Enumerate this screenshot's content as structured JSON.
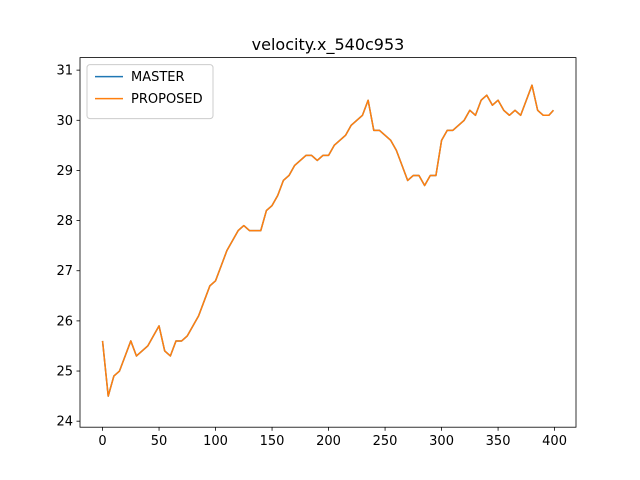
{
  "chart_data": {
    "type": "line",
    "title": "velocity.x_540c953",
    "x": [
      0,
      5,
      10,
      15,
      20,
      25,
      30,
      35,
      40,
      45,
      50,
      55,
      60,
      65,
      70,
      75,
      80,
      85,
      90,
      95,
      100,
      105,
      110,
      115,
      120,
      125,
      130,
      135,
      140,
      145,
      150,
      155,
      160,
      165,
      170,
      175,
      180,
      185,
      190,
      195,
      200,
      205,
      210,
      215,
      220,
      225,
      230,
      235,
      240,
      245,
      250,
      255,
      260,
      265,
      270,
      275,
      280,
      285,
      290,
      295,
      300,
      305,
      310,
      315,
      320,
      325,
      330,
      335,
      340,
      345,
      350,
      355,
      360,
      365,
      370,
      375,
      380,
      385,
      390,
      395,
      399
    ],
    "series": [
      {
        "name": "MASTER",
        "color": "#1f77b4",
        "values": [
          25.6,
          24.5,
          24.9,
          25.0,
          25.3,
          25.6,
          25.3,
          25.4,
          25.5,
          25.7,
          25.9,
          25.4,
          25.3,
          25.6,
          25.6,
          25.7,
          25.9,
          26.1,
          26.4,
          26.7,
          26.8,
          27.1,
          27.4,
          27.6,
          27.8,
          27.9,
          27.8,
          27.8,
          27.8,
          28.2,
          28.3,
          28.5,
          28.8,
          28.9,
          29.1,
          29.2,
          29.3,
          29.3,
          29.2,
          29.3,
          29.3,
          29.5,
          29.6,
          29.7,
          29.9,
          30.0,
          30.1,
          30.4,
          29.8,
          29.8,
          29.7,
          29.6,
          29.4,
          29.1,
          28.8,
          28.9,
          28.9,
          28.7,
          28.9,
          28.9,
          29.6,
          29.8,
          29.8,
          29.9,
          30.0,
          30.2,
          30.1,
          30.4,
          30.5,
          30.3,
          30.4,
          30.2,
          30.1,
          30.2,
          30.1,
          30.4,
          30.7,
          30.2,
          30.1,
          30.1,
          30.2
        ]
      },
      {
        "name": "PROPOSED",
        "color": "#ff7f0e",
        "values": [
          25.6,
          24.5,
          24.9,
          25.0,
          25.3,
          25.6,
          25.3,
          25.4,
          25.5,
          25.7,
          25.9,
          25.4,
          25.3,
          25.6,
          25.6,
          25.7,
          25.9,
          26.1,
          26.4,
          26.7,
          26.8,
          27.1,
          27.4,
          27.6,
          27.8,
          27.9,
          27.8,
          27.8,
          27.8,
          28.2,
          28.3,
          28.5,
          28.8,
          28.9,
          29.1,
          29.2,
          29.3,
          29.3,
          29.2,
          29.3,
          29.3,
          29.5,
          29.6,
          29.7,
          29.9,
          30.0,
          30.1,
          30.4,
          29.8,
          29.8,
          29.7,
          29.6,
          29.4,
          29.1,
          28.8,
          28.9,
          28.9,
          28.7,
          28.9,
          28.9,
          29.6,
          29.8,
          29.8,
          29.9,
          30.0,
          30.2,
          30.1,
          30.4,
          30.5,
          30.3,
          30.4,
          30.2,
          30.1,
          30.2,
          30.1,
          30.4,
          30.7,
          30.2,
          30.1,
          30.1,
          30.2
        ]
      }
    ],
    "xlim": [
      -19.95,
      418.95
    ],
    "xticks": [
      0,
      50,
      100,
      150,
      200,
      250,
      300,
      350,
      400
    ],
    "ylim": [
      23.88,
      31.25
    ],
    "yticks": [
      24,
      25,
      26,
      27,
      28,
      29,
      30,
      31
    ],
    "legend": "upper left"
  }
}
